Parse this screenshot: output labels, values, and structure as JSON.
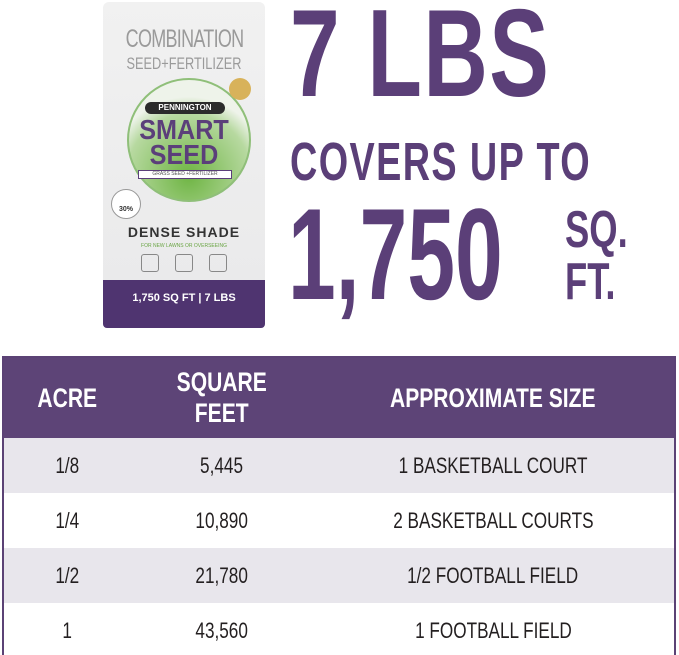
{
  "product": {
    "headline_top": "COMBINATION",
    "headline_sub": "SEED+FERTILIZER",
    "brand": "PENNINGTON",
    "name": "SMART SEED",
    "subline": "GRASS SEED +FERTILIZER",
    "badge": "30%",
    "variety": "DENSE SHADE",
    "tagline": "FOR NEW LAWNS OR OVERSEEING",
    "coverage": "1,750 SQ FT | 7 LBS"
  },
  "hero": {
    "weight": "7 LBS",
    "covers": "COVERS UP TO",
    "area": "1,750",
    "unit_line1": "SQ.",
    "unit_line2": "FT."
  },
  "colors": {
    "brand_purple": "#5b3f78",
    "row_shade": "#e8e6ec"
  },
  "table": {
    "headers": [
      "ACRE",
      "SQUARE FEET",
      "APPROXIMATE SIZE"
    ],
    "rows": [
      [
        "1/8",
        "5,445",
        "1 BASKETBALL COURT"
      ],
      [
        "1/4",
        "10,890",
        "2 BASKETBALL COURTS"
      ],
      [
        "1/2",
        "21,780",
        "1/2 FOOTBALL FIELD"
      ],
      [
        "1",
        "43,560",
        "1 FOOTBALL FIELD"
      ]
    ]
  }
}
